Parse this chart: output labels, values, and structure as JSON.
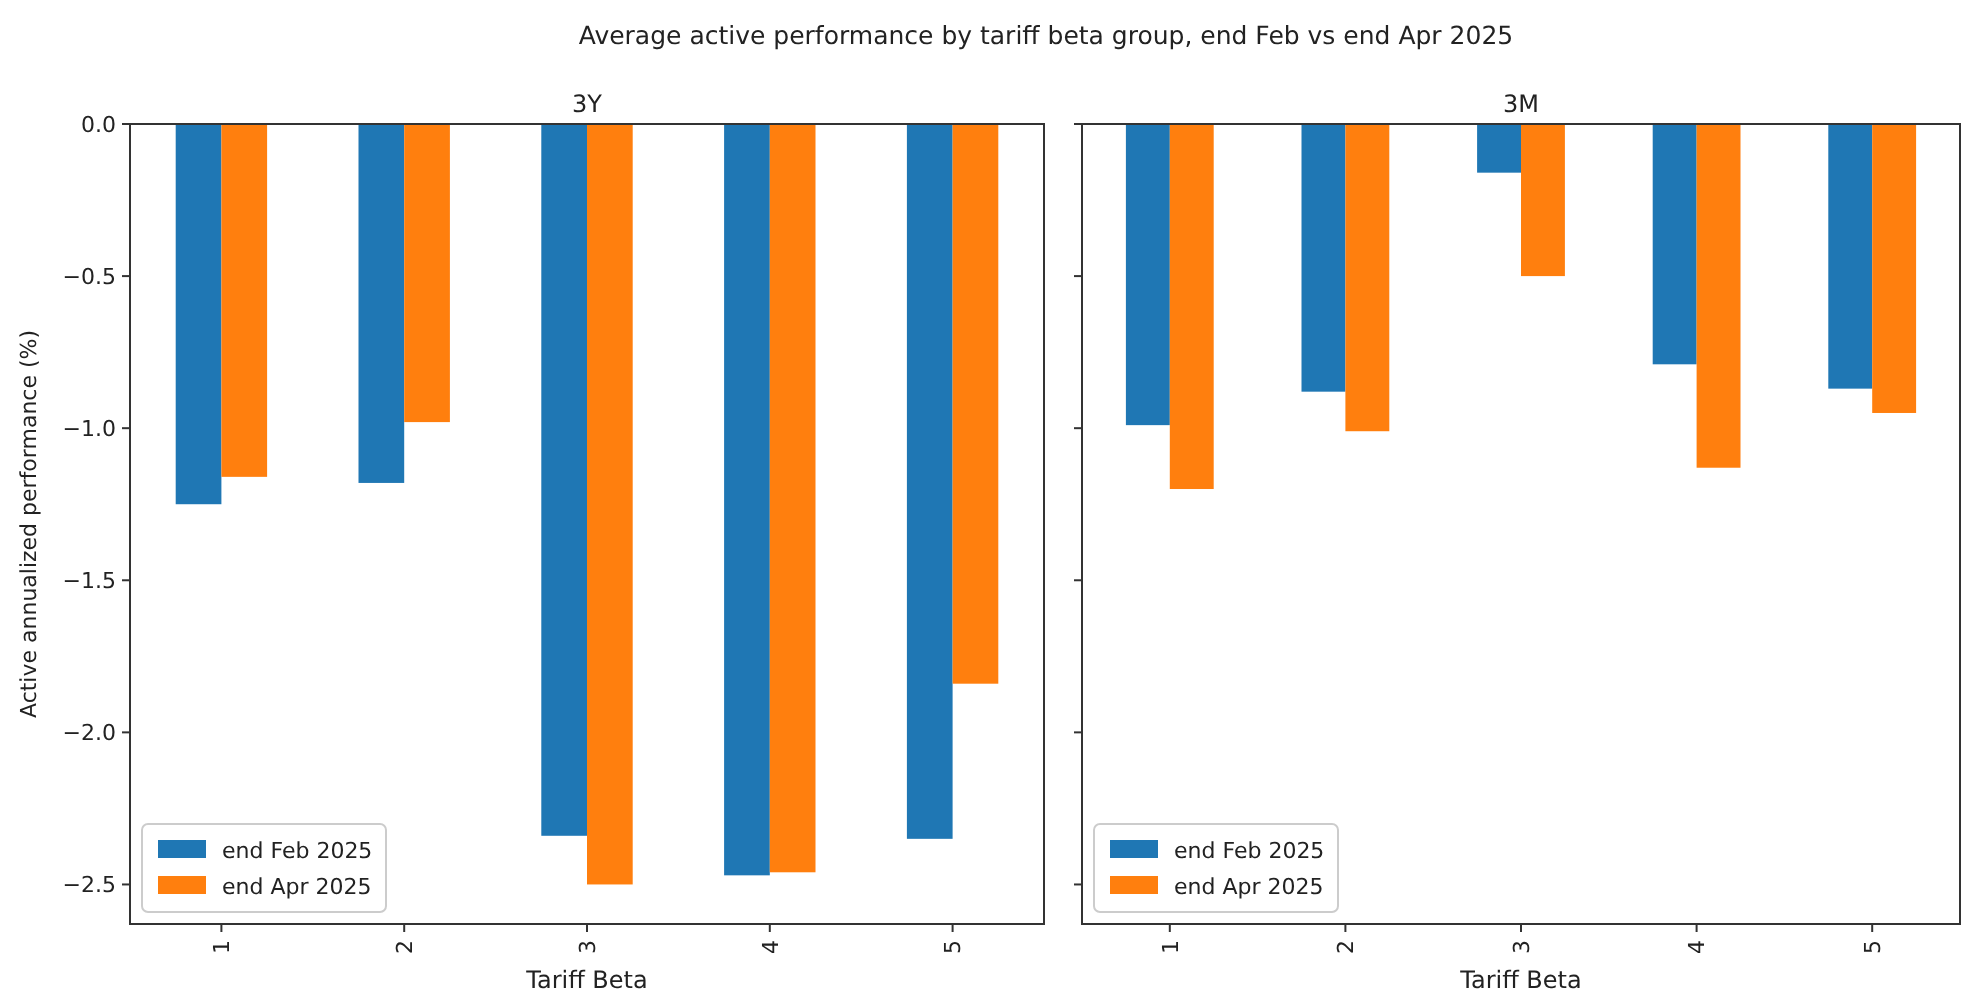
{
  "chart_data": [
    {
      "type": "bar",
      "title": "Average active performance by tariff beta group, end Feb vs end Apr 2025",
      "subtitle": "3Y",
      "xlabel": "Tariff Beta",
      "ylabel": "Active annualized performance (%)",
      "categories": [
        "1",
        "2",
        "3",
        "4",
        "5"
      ],
      "ylim": [
        -2.63,
        0
      ],
      "yticks": [
        {
          "value": 0,
          "label": "0.0"
        },
        {
          "value": -0.5,
          "label": "−0.5"
        },
        {
          "value": -1,
          "label": "−1.0"
        },
        {
          "value": -1.5,
          "label": "−1.5"
        },
        {
          "value": -2,
          "label": "−2.0"
        },
        {
          "value": -2.5,
          "label": "−2.5"
        }
      ],
      "legend": "bottom left",
      "series": [
        {
          "name": "end Feb 2025",
          "color": "#1f77b4",
          "values": [
            -1.25,
            -1.18,
            -2.34,
            -2.47,
            -2.35
          ]
        },
        {
          "name": "end Apr 2025",
          "color": "#ff7f0e",
          "values": [
            -1.16,
            -0.98,
            -2.5,
            -2.46,
            -1.84
          ]
        }
      ]
    },
    {
      "type": "bar",
      "subtitle": "3M",
      "xlabel": "Tariff Beta",
      "categories": [
        "1",
        "2",
        "3",
        "4",
        "5"
      ],
      "ylim": [
        -2.63,
        0
      ],
      "yticks": [
        {
          "value": 0,
          "label": null
        },
        {
          "value": -0.5,
          "label": null
        },
        {
          "value": -1,
          "label": null
        },
        {
          "value": -1.5,
          "label": null
        },
        {
          "value": -2,
          "label": null
        },
        {
          "value": -2.5,
          "label": null
        }
      ],
      "tick_labels": "x",
      "legend": "bottom left",
      "series": [
        {
          "name": "end Feb 2025",
          "color": "#1f77b4",
          "values": [
            -0.99,
            -0.88,
            -0.16,
            -0.79,
            -0.87
          ]
        },
        {
          "name": "end Apr 2025",
          "color": "#ff7f0e",
          "values": [
            -1.2,
            -1.01,
            -0.5,
            -1.13,
            -0.95
          ]
        }
      ]
    }
  ]
}
